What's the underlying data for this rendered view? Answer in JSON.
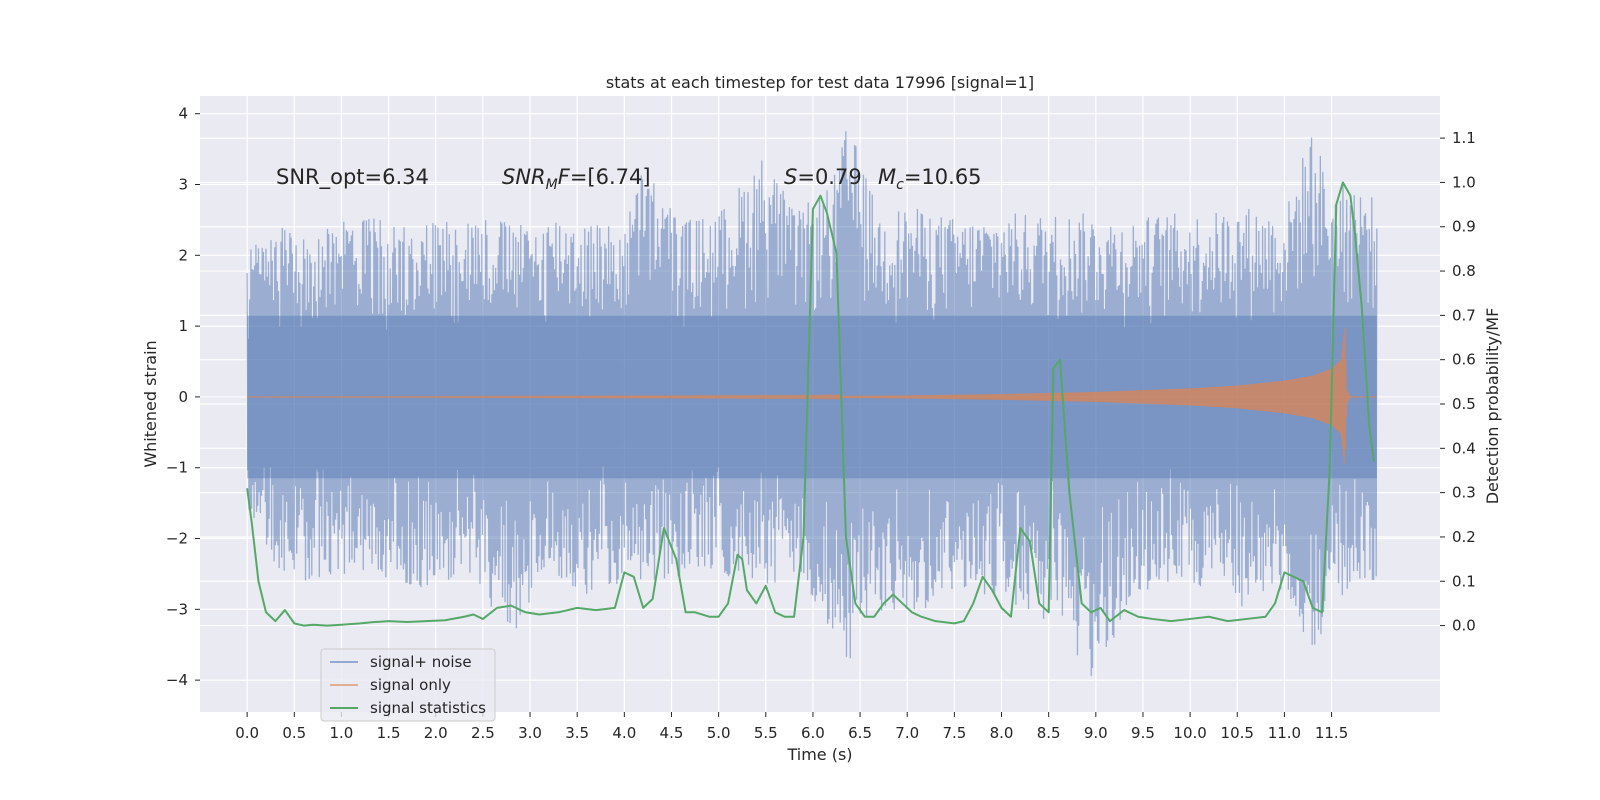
{
  "chart_data": {
    "type": "line",
    "title": "stats at each timestep for test data 17996 [signal=1]",
    "xlabel": "Time (s)",
    "ylabel": "Whitened strain",
    "y2label": "Detection probability/MF",
    "xlim": [
      -0.5,
      12.65
    ],
    "ylim": [
      -4.45,
      4.25
    ],
    "y2lim": [
      -0.195,
      1.195
    ],
    "x_ticks": [
      0.0,
      0.5,
      1.0,
      1.5,
      2.0,
      2.5,
      3.0,
      3.5,
      4.0,
      4.5,
      5.0,
      5.5,
      6.0,
      6.5,
      7.0,
      7.5,
      8.0,
      8.5,
      9.0,
      9.5,
      10.0,
      10.5,
      11.0,
      11.5
    ],
    "x_tick_labels": [
      "0.0",
      "0.5",
      "1.0",
      "1.5",
      "2.0",
      "2.5",
      "3.0",
      "3.5",
      "4.0",
      "4.5",
      "5.0",
      "5.5",
      "6.0",
      "6.5",
      "7.0",
      "7.5",
      "8.0",
      "8.5",
      "9.0",
      "9.5",
      "10.0",
      "10.5",
      "11.0",
      "11.5"
    ],
    "y_ticks": [
      -4,
      -3,
      -2,
      -1,
      0,
      1,
      2,
      3,
      4
    ],
    "y_tick_labels": [
      "−4",
      "−3",
      "−2",
      "−1",
      "0",
      "1",
      "2",
      "3",
      "4"
    ],
    "y2_ticks": [
      0.0,
      0.1,
      0.2,
      0.3,
      0.4,
      0.5,
      0.6,
      0.7,
      0.8,
      0.9,
      1.0,
      1.1
    ],
    "y2_tick_labels": [
      "0.0",
      "0.1",
      "0.2",
      "0.3",
      "0.4",
      "0.5",
      "0.6",
      "0.7",
      "0.8",
      "0.9",
      "1.0",
      "1.1"
    ],
    "grid": true,
    "legend_position": "bottom-left",
    "annotations": {
      "snr_opt": "SNR_opt=6.34",
      "snr_mf_symbol": "SNR",
      "snr_mf_subscript": "M",
      "snr_mf_rest": "F",
      "snr_mf_value": "=[6.74]",
      "s_symbol": "S",
      "s_value": "=0.79",
      "mc_symbol": "M",
      "mc_subscript": "c",
      "mc_value": "=10.65"
    },
    "series": [
      {
        "name": "signal+ noise",
        "color": "#4c72b0",
        "kind": "noise",
        "x_range": [
          0.0,
          11.98
        ],
        "envelope_upper": {
          "x": [
            0.0,
            0.4,
            0.9,
            1.2,
            1.5,
            2.0,
            2.3,
            2.6,
            3.0,
            3.3,
            3.6,
            4.0,
            4.2,
            4.6,
            5.0,
            5.5,
            5.8,
            6.2,
            6.37,
            6.7,
            7.0,
            7.6,
            8.0,
            8.3,
            8.7,
            9.0,
            9.3,
            9.7,
            10.2,
            10.6,
            11.0,
            11.3,
            11.5,
            11.7,
            11.98
          ],
          "y": [
            2.2,
            2.4,
            2.4,
            2.6,
            2.5,
            2.5,
            2.6,
            2.55,
            2.4,
            2.6,
            2.5,
            2.4,
            3.3,
            2.5,
            2.6,
            3.5,
            2.6,
            3.0,
            3.9,
            2.6,
            2.7,
            2.5,
            2.6,
            2.6,
            2.6,
            2.6,
            2.5,
            2.6,
            2.6,
            2.7,
            2.6,
            3.85,
            2.9,
            3.1,
            2.8
          ]
        },
        "envelope_lower": {
          "x": [
            0.0,
            0.3,
            0.6,
            1.0,
            1.4,
            1.9,
            2.4,
            2.8,
            3.2,
            3.6,
            4.2,
            4.6,
            5.0,
            5.5,
            5.9,
            6.35,
            6.6,
            7.0,
            7.4,
            8.0,
            8.6,
            9.0,
            9.4,
            9.8,
            10.2,
            10.6,
            11.0,
            11.3,
            11.7,
            11.98
          ],
          "y": [
            -1.8,
            -2.4,
            -2.6,
            -2.5,
            -2.6,
            -2.7,
            -2.5,
            -3.5,
            -2.5,
            -2.8,
            -2.6,
            -2.6,
            -2.5,
            -2.7,
            -2.6,
            -4.0,
            -3.0,
            -3.2,
            -2.8,
            -2.8,
            -3.4,
            -4.1,
            -2.8,
            -2.7,
            -2.7,
            -3.0,
            -2.8,
            -3.6,
            -2.7,
            -2.6
          ]
        }
      },
      {
        "name": "signal only",
        "color": "#dd8452",
        "kind": "chirp",
        "x_range": [
          0.0,
          11.98
        ],
        "amplitude": {
          "x": [
            0.0,
            6.0,
            7.0,
            8.0,
            9.0,
            10.0,
            10.5,
            11.0,
            11.3,
            11.5,
            11.6,
            11.64,
            11.66,
            11.7,
            11.98
          ],
          "y": [
            0.0,
            0.01,
            0.02,
            0.04,
            0.07,
            0.12,
            0.16,
            0.23,
            0.3,
            0.4,
            0.52,
            1.0,
            0.1,
            0.0,
            0.0
          ]
        }
      },
      {
        "name": "signal statistics",
        "color": "#55a868",
        "axis": "right",
        "x": [
          0.0,
          0.05,
          0.12,
          0.2,
          0.3,
          0.4,
          0.5,
          0.6,
          0.7,
          0.85,
          1.0,
          1.2,
          1.35,
          1.5,
          1.7,
          1.9,
          2.1,
          2.3,
          2.4,
          2.5,
          2.65,
          2.8,
          2.95,
          3.1,
          3.3,
          3.5,
          3.7,
          3.9,
          4.0,
          4.1,
          4.2,
          4.3,
          4.42,
          4.55,
          4.65,
          4.75,
          4.9,
          5.0,
          5.1,
          5.2,
          5.25,
          5.3,
          5.4,
          5.5,
          5.6,
          5.7,
          5.8,
          5.9,
          6.0,
          6.08,
          6.15,
          6.25,
          6.35,
          6.45,
          6.55,
          6.65,
          6.75,
          6.85,
          6.95,
          7.05,
          7.15,
          7.3,
          7.5,
          7.6,
          7.7,
          7.8,
          7.9,
          8.0,
          8.1,
          8.2,
          8.3,
          8.4,
          8.5,
          8.55,
          8.62,
          8.72,
          8.85,
          8.95,
          9.05,
          9.15,
          9.3,
          9.45,
          9.6,
          9.8,
          10.0,
          10.2,
          10.4,
          10.6,
          10.8,
          10.9,
          11.0,
          11.1,
          11.2,
          11.3,
          11.4,
          11.48,
          11.55,
          11.62,
          11.7,
          11.75,
          11.82,
          11.9,
          11.95
        ],
        "y": [
          0.31,
          0.23,
          0.1,
          0.03,
          0.01,
          0.035,
          0.005,
          0.0,
          0.002,
          0.0,
          0.002,
          0.005,
          0.008,
          0.01,
          0.008,
          0.01,
          0.012,
          0.02,
          0.025,
          0.015,
          0.04,
          0.045,
          0.03,
          0.025,
          0.03,
          0.04,
          0.035,
          0.04,
          0.12,
          0.11,
          0.04,
          0.06,
          0.22,
          0.15,
          0.03,
          0.03,
          0.02,
          0.02,
          0.05,
          0.16,
          0.15,
          0.08,
          0.05,
          0.09,
          0.03,
          0.02,
          0.02,
          0.2,
          0.94,
          0.97,
          0.93,
          0.84,
          0.2,
          0.05,
          0.02,
          0.02,
          0.05,
          0.07,
          0.05,
          0.03,
          0.02,
          0.01,
          0.005,
          0.01,
          0.05,
          0.11,
          0.08,
          0.04,
          0.02,
          0.22,
          0.19,
          0.05,
          0.03,
          0.58,
          0.6,
          0.3,
          0.05,
          0.03,
          0.04,
          0.01,
          0.035,
          0.02,
          0.015,
          0.01,
          0.015,
          0.02,
          0.01,
          0.015,
          0.02,
          0.05,
          0.12,
          0.11,
          0.1,
          0.04,
          0.03,
          0.35,
          0.95,
          1.0,
          0.97,
          0.88,
          0.72,
          0.45,
          0.37
        ]
      }
    ]
  }
}
